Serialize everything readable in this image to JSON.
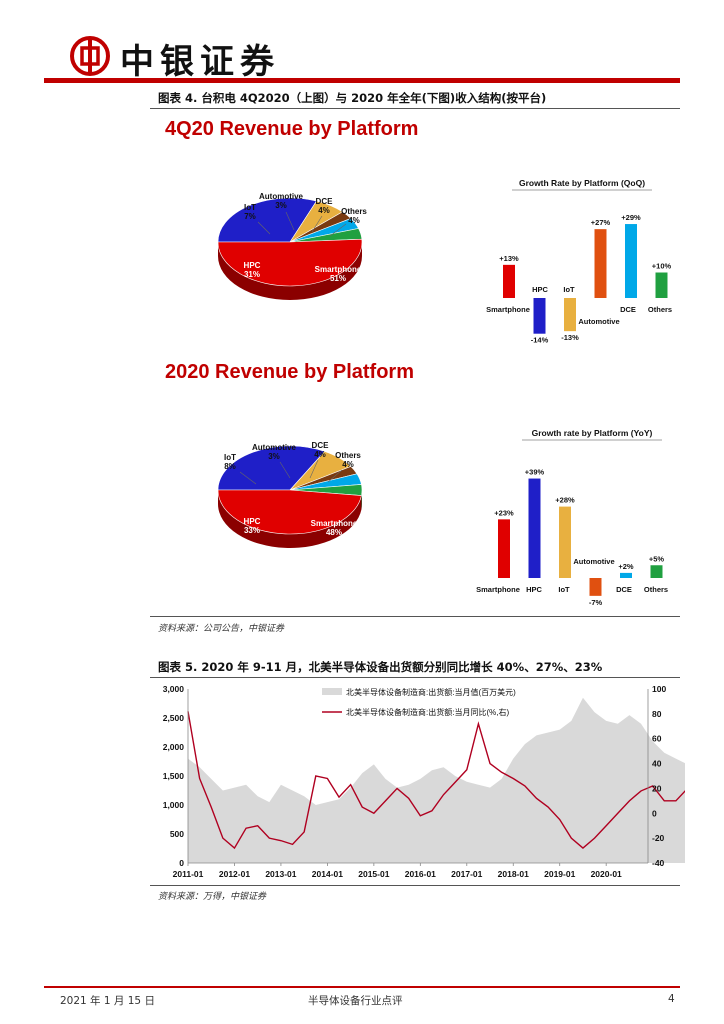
{
  "header": {
    "company_name": "中银证券"
  },
  "fig4": {
    "title": "图表 4. 台积电 4Q2020（上图）与 2020 年全年(下图)收入结构(按平台)",
    "source": "资料来源：公司公告，中银证券"
  },
  "fig5": {
    "title": "图表 5. 2020 年 9-11 月，北美半导体设备出货额分别同比增长 40%、27%、23%",
    "source": "资料来源：万得，中银证券"
  },
  "footer": {
    "date": "2021 年 1 月 15 日",
    "report_name": "半导体设备行业点评",
    "page_number": "4"
  },
  "colors": {
    "brand_red": "#c00000",
    "smartphone": "#e00000",
    "hpc": "#1f1fc8",
    "iot": "#e8b040",
    "automotive": "#7a3a10",
    "dce": "#00a8e8",
    "others": "#20a040",
    "shipment_area": "#d9d9d9",
    "yoy_line": "#b00020"
  },
  "chart_data": [
    {
      "type": "pie",
      "title": "4Q20 Revenue by Platform",
      "slices": [
        {
          "label": "Smartphone",
          "value": 51,
          "value_text": "51%",
          "color": "#e00000"
        },
        {
          "label": "HPC",
          "value": 31,
          "value_text": "31%",
          "color": "#1f1fc8"
        },
        {
          "label": "IoT",
          "value": 7,
          "value_text": "7%",
          "color": "#e8b040"
        },
        {
          "label": "Automotive",
          "value": 3,
          "value_text": "3%",
          "color": "#7a3a10"
        },
        {
          "label": "DCE",
          "value": 4,
          "value_text": "4%",
          "color": "#00a8e8"
        },
        {
          "label": "Others",
          "value": 4,
          "value_text": "4%",
          "color": "#20a040"
        }
      ]
    },
    {
      "type": "bar",
      "title": "Growth Rate by Platform (QoQ)",
      "categories": [
        "Smartphone",
        "HPC",
        "IoT",
        "Automotive",
        "DCE",
        "Others"
      ],
      "values": [
        13,
        -14,
        -13,
        27,
        29,
        10
      ],
      "value_labels": [
        "+13%",
        "-14%",
        "-13%",
        "+27%",
        "+29%",
        "+10%"
      ]
    },
    {
      "type": "pie",
      "title": "2020 Revenue by Platform",
      "slices": [
        {
          "label": "Smartphone",
          "value": 48,
          "value_text": "48%",
          "color": "#e00000"
        },
        {
          "label": "HPC",
          "value": 33,
          "value_text": "33%",
          "color": "#1f1fc8"
        },
        {
          "label": "IoT",
          "value": 8,
          "value_text": "8%",
          "color": "#e8b040"
        },
        {
          "label": "Automotive",
          "value": 3,
          "value_text": "3%",
          "color": "#7a3a10"
        },
        {
          "label": "DCE",
          "value": 4,
          "value_text": "4%",
          "color": "#00a8e8"
        },
        {
          "label": "Others",
          "value": 4,
          "value_text": "4%",
          "color": "#20a040"
        }
      ]
    },
    {
      "type": "bar",
      "title": "Growth rate by Platform (YoY)",
      "categories": [
        "Smartphone",
        "HPC",
        "IoT",
        "Automotive",
        "DCE",
        "Others"
      ],
      "values": [
        23,
        39,
        28,
        -7,
        2,
        5
      ],
      "value_labels": [
        "+23%",
        "+39%",
        "+28%",
        "-7%",
        "+2%",
        "+5%"
      ]
    },
    {
      "type": "area",
      "title": "",
      "x_ticks": [
        "2011-01",
        "2012-01",
        "2013-01",
        "2014-01",
        "2015-01",
        "2016-01",
        "2017-01",
        "2018-01",
        "2019-01",
        "2020-01"
      ],
      "y_left_ticks": [
        "0",
        "500",
        "1,000",
        "1,500",
        "2,000",
        "2,500",
        "3,000"
      ],
      "y_right_ticks": [
        "-40",
        "-20",
        "0",
        "20",
        "40",
        "60",
        "80",
        "100"
      ],
      "ylim_left": [
        0,
        3000
      ],
      "ylim_right": [
        -40,
        100
      ],
      "legend_placement": "top",
      "grid": false,
      "x_start": 2011.0,
      "x_step": 0.25,
      "series": [
        {
          "name": "北美半导体设备制造商:出货额:当月值(百万美元)",
          "axis": "left",
          "type": "area",
          "values": [
            1800,
            1650,
            1450,
            1250,
            1300,
            1350,
            1150,
            1050,
            1350,
            1250,
            1150,
            1000,
            1050,
            1100,
            1300,
            1550,
            1700,
            1450,
            1300,
            1350,
            1450,
            1600,
            1650,
            1500,
            1400,
            1350,
            1300,
            1450,
            1800,
            2050,
            2200,
            2250,
            2300,
            2450,
            2850,
            2600,
            2450,
            2400,
            2550,
            2400,
            2100,
            1900,
            1800,
            1700,
            1950,
            2350,
            2600,
            2550,
            2500,
            2700,
            2850,
            2750,
            2700,
            2500,
            2200,
            2400,
            2650,
            2800,
            2900,
            2750
          ]
        },
        {
          "name": "北美半导体设备制造商:出货额:当月同比(%,右)",
          "axis": "right",
          "type": "line",
          "values": [
            82,
            28,
            5,
            -20,
            -28,
            -12,
            -10,
            -20,
            -22,
            -25,
            -15,
            30,
            28,
            13,
            23,
            5,
            0,
            10,
            20,
            12,
            -2,
            2,
            15,
            25,
            35,
            72,
            40,
            33,
            28,
            22,
            12,
            5,
            -5,
            -20,
            -28,
            -20,
            -10,
            0,
            10,
            18,
            22,
            10,
            10,
            20,
            30,
            45,
            40,
            30,
            15,
            12,
            10,
            8,
            0,
            -5,
            -10,
            -22,
            -28,
            -18,
            -8,
            20
          ]
        }
      ]
    }
  ]
}
